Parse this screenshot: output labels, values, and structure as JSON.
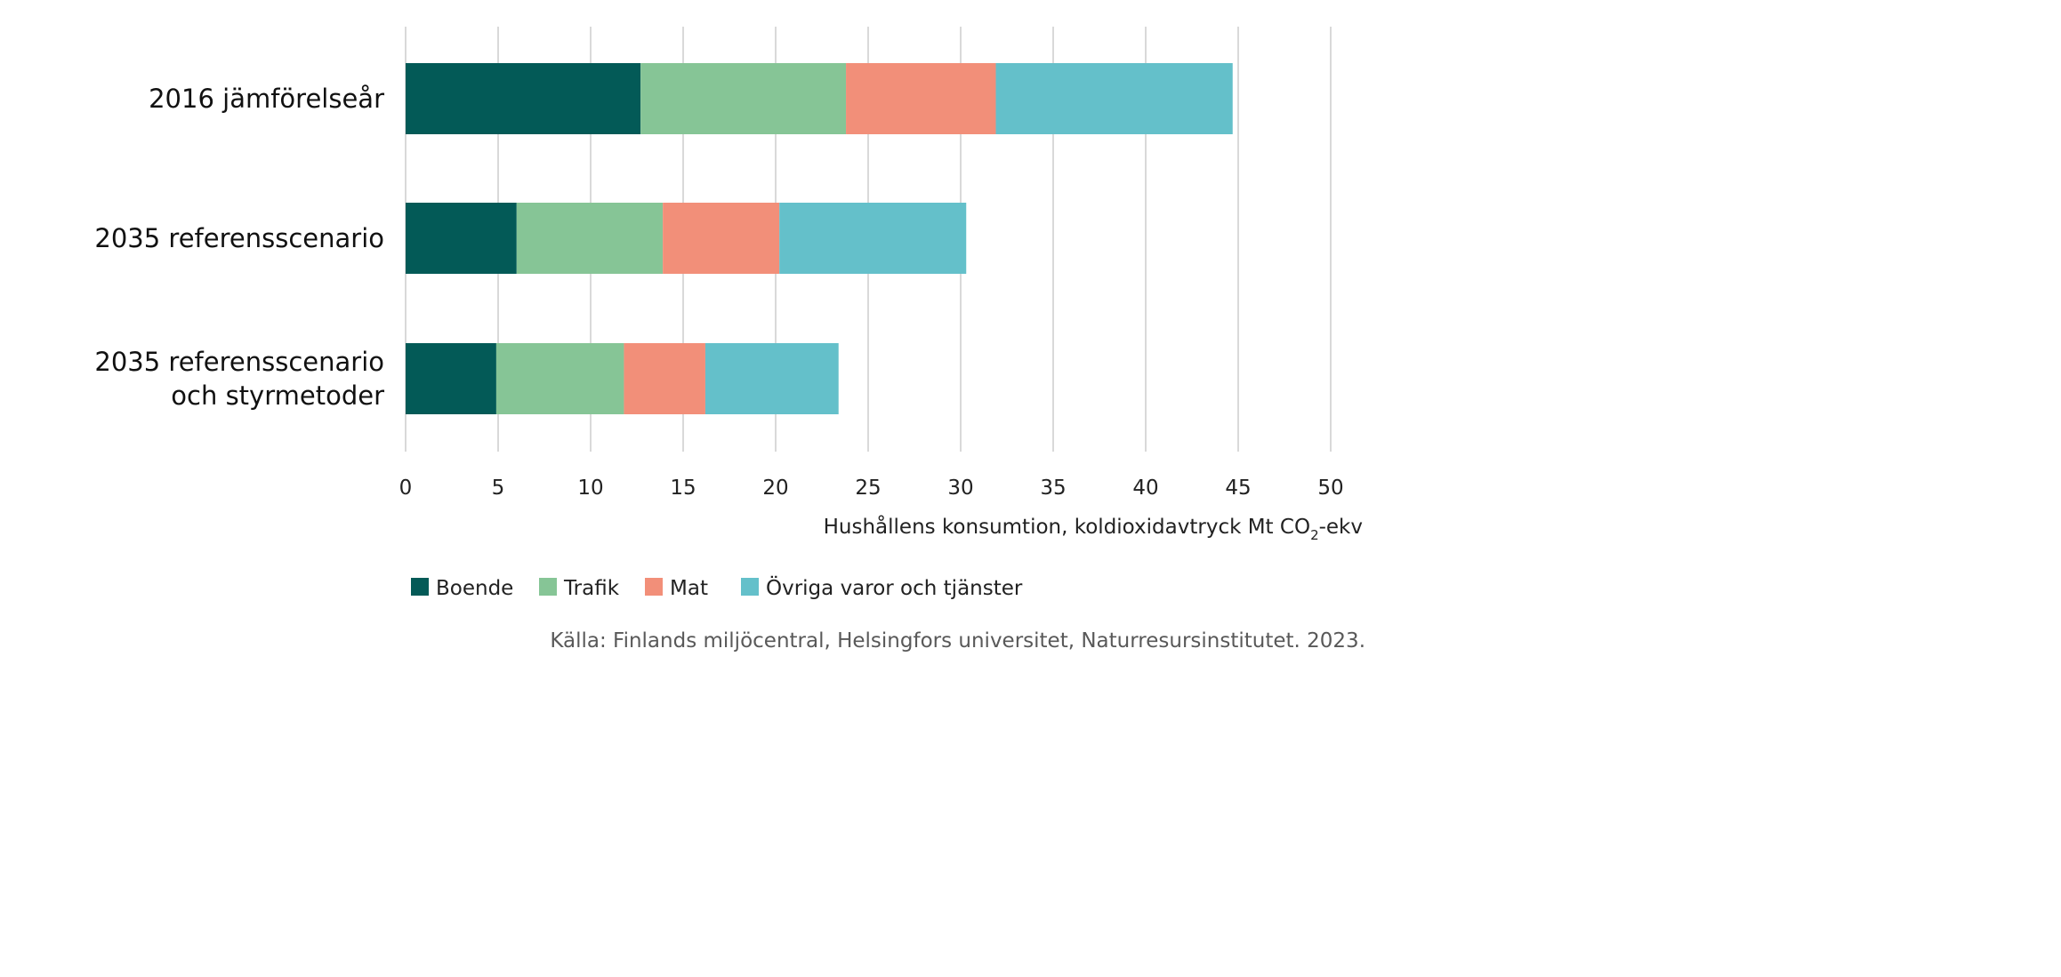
{
  "chart_data": {
    "type": "bar",
    "orientation": "horizontal",
    "stacked": true,
    "categories": [
      "2016 jämförelseår",
      "2035 referensscenario",
      "2035 referensscenario och styrmetoder"
    ],
    "category_lines": [
      [
        "2016 jämförelseår"
      ],
      [
        "2035 referensscenario"
      ],
      [
        "2035 referensscenario",
        "och styrmetoder"
      ]
    ],
    "series": [
      {
        "name": "Boende",
        "color": "#035a57",
        "values": [
          12.7,
          6.0,
          4.9
        ]
      },
      {
        "name": "Trafik",
        "color": "#86c596",
        "values": [
          11.1,
          7.9,
          6.9
        ]
      },
      {
        "name": "Mat",
        "color": "#f28f79",
        "values": [
          8.1,
          6.3,
          4.4
        ]
      },
      {
        "name": "Övriga varor och tjänster",
        "color": "#64c0ca",
        "values": [
          12.8,
          10.1,
          7.2
        ]
      }
    ],
    "xlim": [
      0,
      50
    ],
    "xticks": [
      "0",
      "5",
      "10",
      "15",
      "20",
      "25",
      "30",
      "35",
      "40",
      "45",
      "50"
    ],
    "xlabel": "Hushållens konsumtion, koldioxidavtryck Mt CO",
    "xlabel_sub": "2",
    "xlabel_suffix": "-ekv",
    "grid": "vertical",
    "legend_position": "bottom",
    "source": "Källa: Finlands miljöcentral, Helsingfors universitet, Naturresursinstitutet. 2023."
  }
}
